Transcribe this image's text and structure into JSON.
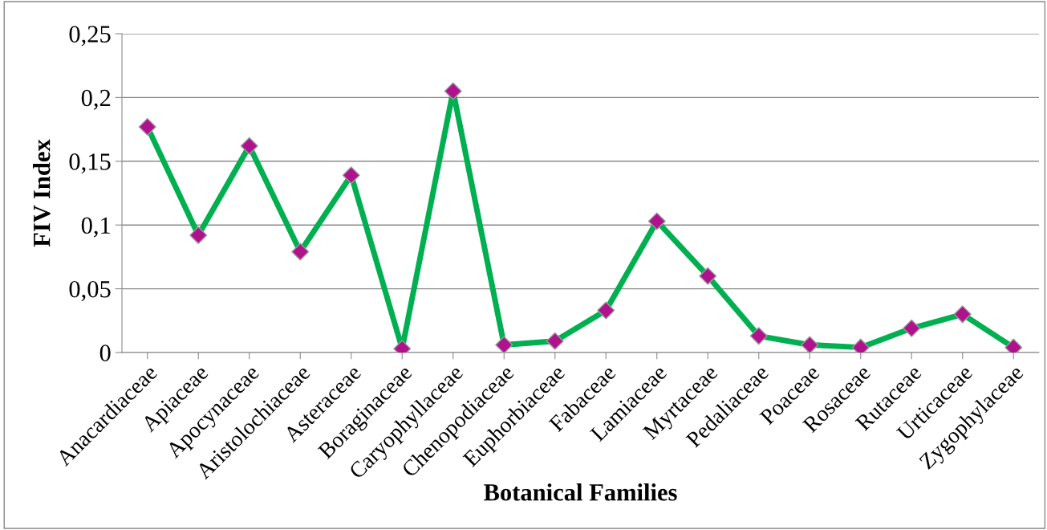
{
  "chart_data": {
    "type": "line",
    "xlabel": "Botanical Families",
    "ylabel": "FIV Index",
    "categories": [
      "Anacardiaceae",
      "Apiaceae",
      "Apocynaceae",
      "Aristolochiaceae",
      "Asteraceae",
      "Boraginaceae",
      "Caryophyllaceae",
      "Chenopodiaceae",
      "Euphorbiaceae",
      "Fabaceae",
      "Lamiaceae",
      "Myrtaceae",
      "Pedaliaceae",
      "Poaceae",
      "Rosaceae",
      "Rutaceae",
      "Urticaceae",
      "Zygophylaceae"
    ],
    "series": [
      {
        "color": "#00b050",
        "colors": [
          "#b0128e",
          "#b0128e",
          "#b0128e",
          "#b0128e",
          "#b0128e",
          "#b0128e",
          "#b0128e",
          "#b0128e",
          "#b0128e",
          "#b0128e",
          "#b0128e",
          "#b0128e",
          "#b0128e",
          "#b0128e",
          "#b0128e",
          "#b0128e",
          "#b0128e",
          "#b0128e"
        ],
        "values": [
          0.177,
          0.092,
          0.162,
          0.079,
          0.139,
          0.003,
          0.205,
          0.006,
          0.009,
          0.033,
          0.103,
          0.06,
          0.013,
          0.006,
          0.004,
          0.019,
          0.03,
          0.004
        ]
      }
    ],
    "ylim": [
      0,
      0.25
    ],
    "yticks": [
      {
        "value": 0,
        "label": "0"
      },
      {
        "value": 0.05,
        "label": "0,05"
      },
      {
        "value": 0.1,
        "label": "0,1"
      },
      {
        "value": 0.15,
        "label": "0,15"
      },
      {
        "value": 0.2,
        "label": "0,2"
      },
      {
        "value": 0.25,
        "label": "0,25"
      }
    ],
    "grid": "y",
    "marker": "diamond",
    "line_style": "solid",
    "legend": false
  }
}
